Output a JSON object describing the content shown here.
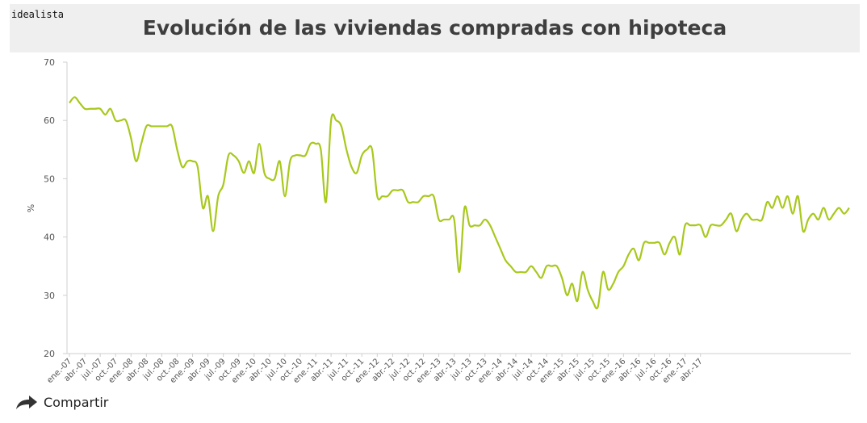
{
  "brand": {
    "name": "idealista"
  },
  "header": {
    "title": "Evolución de las viviendas compradas con hipoteca"
  },
  "share": {
    "label": "Compartir",
    "icon": "share-arrow-icon"
  },
  "colors": {
    "line": "#a8c81c",
    "title_bg": "#efefef",
    "axis": "#cfcfcf"
  },
  "chart_data": {
    "type": "line",
    "title": "Evolución de las viviendas compradas con hipoteca",
    "xlabel": "",
    "ylabel": "%",
    "ylim": [
      20,
      70
    ],
    "yticks": [
      20,
      30,
      40,
      50,
      60,
      70
    ],
    "grid": false,
    "x_start": "ene-07",
    "x_tick_labels": [
      "ene.-07",
      "abr.-07",
      "jul.-07",
      "oct.-07",
      "ene.-08",
      "abr.-08",
      "jul.-08",
      "oct.-08",
      "ene.-09",
      "abr.-09",
      "jul.-09",
      "oct.-09",
      "ene.-10",
      "abr.-10",
      "jul.-10",
      "oct.-10",
      "ene.-11",
      "abr.-11",
      "jul.-11",
      "oct.-11",
      "ene.-12",
      "abr.-12",
      "jul.-12",
      "oct.-12",
      "ene.-13",
      "abr.-13",
      "jul.-13",
      "oct.-13",
      "ene.-14",
      "abr.-14",
      "jul.-14",
      "oct.-14",
      "ene.-15",
      "abr.-15",
      "jul.-15",
      "oct.-15",
      "ene.-16",
      "abr.-16",
      "jul.-16",
      "oct.-16",
      "ene.-17",
      "abr.-17"
    ],
    "series": [
      {
        "name": "",
        "values": [
          63,
          64,
          63,
          62,
          62,
          62,
          62,
          61,
          62,
          60,
          60,
          60,
          57,
          53,
          56,
          59,
          59,
          59,
          59,
          59,
          59,
          55,
          52,
          53,
          53,
          52,
          45,
          47,
          41,
          47,
          49,
          54,
          54,
          53,
          51,
          53,
          51,
          56,
          51,
          50,
          50,
          53,
          47,
          53,
          54,
          54,
          54,
          56,
          56,
          55,
          46,
          60,
          60,
          59,
          55,
          52,
          51,
          54,
          55,
          55,
          47,
          47,
          47,
          48,
          48,
          48,
          46,
          46,
          46,
          47,
          47,
          47,
          43,
          43,
          43,
          43,
          34,
          45,
          42,
          42,
          42,
          43,
          42,
          40,
          38,
          36,
          35,
          34,
          34,
          34,
          35,
          34,
          33,
          35,
          35,
          35,
          33,
          30,
          32,
          29,
          34,
          31,
          29,
          28,
          34,
          31,
          32,
          34,
          35,
          37,
          38,
          36,
          39,
          39,
          39,
          39,
          37,
          39,
          40,
          37,
          42,
          42,
          42,
          42,
          40,
          42,
          42,
          42,
          43,
          44,
          41,
          43,
          44,
          43,
          43,
          43,
          46,
          45,
          47,
          45,
          47,
          44,
          47,
          41,
          43,
          44,
          43,
          45,
          43,
          44,
          45,
          44,
          45
        ]
      }
    ]
  }
}
